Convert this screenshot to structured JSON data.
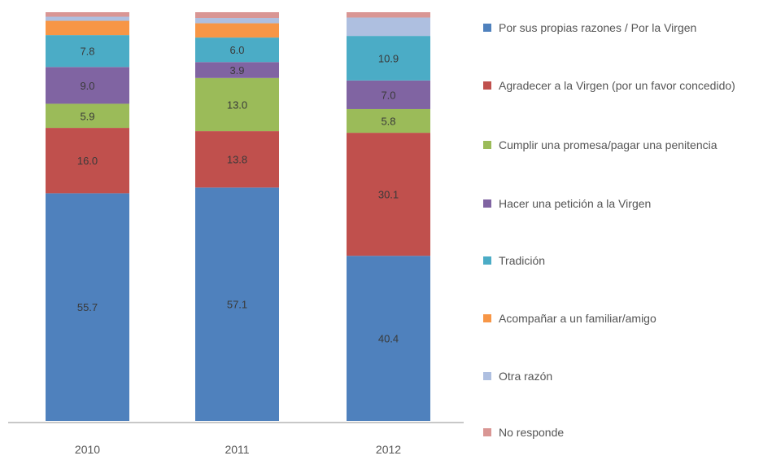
{
  "chart_data": {
    "type": "bar",
    "stacked": true,
    "stack_total": 100,
    "categories": [
      "2010",
      "2011",
      "2012"
    ],
    "series": [
      {
        "name": "Por sus propias razones / Por la Virgen",
        "color": "#4f81bd",
        "values": [
          55.7,
          57.1,
          40.4
        ],
        "labels": [
          "55.7",
          "57.1",
          "40.4"
        ]
      },
      {
        "name": "Agradecer a la Virgen (por un favor concedido)",
        "color": "#c0504d",
        "values": [
          16.0,
          13.8,
          30.1
        ],
        "labels": [
          "16.0",
          "13.8",
          "30.1"
        ]
      },
      {
        "name": "Cumplir una promesa/pagar una penitencia",
        "color": "#9bbb59",
        "values": [
          5.9,
          13.0,
          5.8
        ],
        "labels": [
          "5.9",
          "13.0",
          "5.8"
        ]
      },
      {
        "name": "Hacer una petición a la Virgen",
        "color": "#8064a2",
        "values": [
          9.0,
          3.9,
          7.0
        ],
        "labels": [
          "9.0",
          "3.9",
          "7.0"
        ]
      },
      {
        "name": "Tradición",
        "color": "#4bacc6",
        "values": [
          7.8,
          6.0,
          10.9
        ],
        "labels": [
          "7.8",
          "6.0",
          "10.9"
        ]
      },
      {
        "name": "Acompañar a un familiar/amigo",
        "color": "#f79646",
        "values": [
          3.5,
          3.5,
          0.0
        ],
        "labels": [
          "",
          "",
          ""
        ]
      },
      {
        "name": "Otra razón",
        "color": "#aebfe0",
        "values": [
          1.0,
          1.3,
          4.5
        ],
        "labels": [
          "",
          "",
          ""
        ]
      },
      {
        "name": "No responde",
        "color": "#d99694",
        "values": [
          1.1,
          1.4,
          1.3
        ],
        "labels": [
          "",
          "",
          ""
        ]
      }
    ],
    "ylim": [
      0,
      100
    ],
    "legend": "right"
  }
}
